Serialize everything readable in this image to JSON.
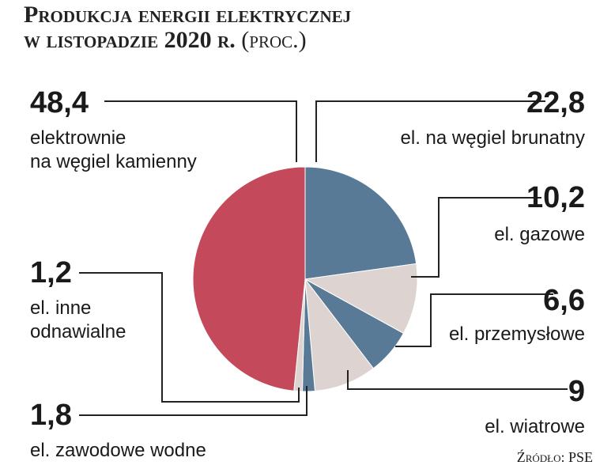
{
  "chart_data": {
    "type": "pie",
    "title": "Produkcja energii elektrycznej",
    "subtitle": "w listopadzie 2020 r.",
    "unit": "(proc.)",
    "categories": [
      "el. na węgiel brunatny",
      "el. gazowe",
      "el. przemysłowe",
      "el. wiatrowe",
      "el. zawodowe wodne",
      "el. inne\nodnawialne",
      "elektrownie\nna węgiel kamienny"
    ],
    "values": [
      22.8,
      10.2,
      6.6,
      9,
      1.8,
      1.2,
      48.4
    ],
    "value_labels": [
      "22,8",
      "10,2",
      "6,6",
      "9",
      "1,8",
      "1,2",
      "48,4"
    ],
    "colors": [
      "#587a96",
      "#ddd4d1",
      "#587a96",
      "#ddd4d1",
      "#587a96",
      "#ddd4d1",
      "#c44a5b"
    ],
    "source": "Źródło: PSE"
  }
}
